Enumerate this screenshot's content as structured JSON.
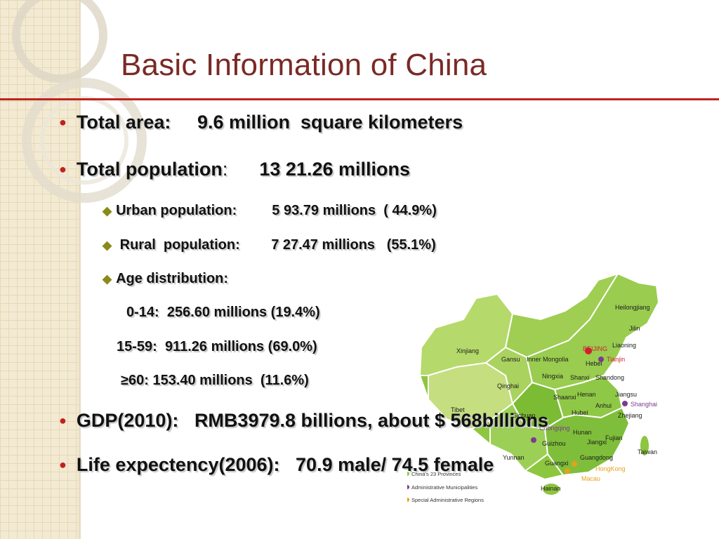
{
  "slide": {
    "title": "Basic Information of China",
    "total_area": {
      "label": "Total area:",
      "value": "9.6 million  square kilometers"
    },
    "total_population": {
      "label": "Total population",
      "colon": ":",
      "value": "13 21.26 millions"
    },
    "urban_population": {
      "label": "Urban population:",
      "value": "5 93.79 millions  ( 44.9%)"
    },
    "rural_population": {
      "label": "Rural  population:",
      "value": "7 27.47 millions   (55.1%)"
    },
    "age_distribution": {
      "label": "Age distribution:"
    },
    "age_0_14": {
      "label": "0-14:",
      "value": "256.60 millions (19.4%)"
    },
    "age_15_59": {
      "label": "15-59:",
      "value": "911.26 millions (69.0%)"
    },
    "age_60_plus": {
      "label": "≥60:",
      "value": "153.40 millions  (11.6%)"
    },
    "gdp": {
      "label": "GDP(2010):",
      "value": "RMB3979.8 billions, about $ 568billions"
    },
    "life_expectancy": {
      "label": "Life expectency(2006):",
      "value": "70.9 male/ 74.5 female"
    }
  },
  "map": {
    "labels": [
      "Heilongjiang",
      "Jilin",
      "Liaoning",
      "BEIJING",
      "Tianjin",
      "Hebei",
      "Inner Mongolia",
      "Xinjiang",
      "Gansu",
      "Ningxia",
      "Shanxi",
      "Shandong",
      "Qinghai",
      "Shaanxi",
      "Henan",
      "Jiangsu",
      "Shanghai",
      "Anhui",
      "Tibet",
      "Sichuan",
      "Hubei",
      "Zhejiang",
      "Chongqing",
      "Hunan",
      "Fujian",
      "Guizhou",
      "Jiangxi",
      "Taiwan",
      "Yunnan",
      "Guangxi",
      "Guangdong",
      "HongKong",
      "Macau",
      "Hainan"
    ],
    "legend": [
      "China's 23 Provinces",
      "Administrative Municipalities",
      "Special Administrative Regions"
    ],
    "colors": {
      "land": "#8dc63f",
      "land_light": "#b5d96a",
      "land_dark": "#6aa82b",
      "capital": "#d0202e",
      "municipality": "#7b3b8f",
      "sar": "#e5a11b"
    }
  },
  "colors": {
    "title": "#7a2a26",
    "rule": "#c0221f",
    "bullet": "#c0221f",
    "diamond": "#8a8a1a",
    "strip": "#f3ead3"
  }
}
